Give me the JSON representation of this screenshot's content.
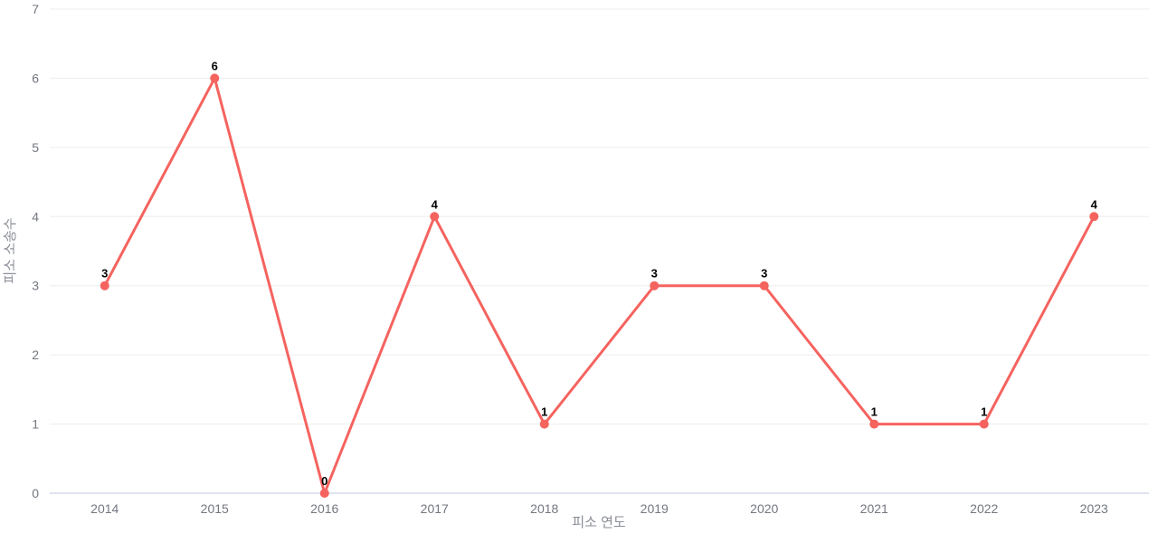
{
  "chart_data": {
    "type": "line",
    "title": "",
    "categories": [
      "2014",
      "2015",
      "2016",
      "2017",
      "2018",
      "2019",
      "2020",
      "2021",
      "2022",
      "2023"
    ],
    "values": [
      3,
      6,
      0,
      4,
      1,
      3,
      3,
      1,
      1,
      4
    ],
    "xlabel": "피소 연도",
    "ylabel": "피소 소송수",
    "ylim": [
      0,
      7
    ],
    "y_ticks": [
      0,
      1,
      2,
      3,
      4,
      5,
      6,
      7
    ],
    "grid": true,
    "legend_position": "none",
    "point_labels_shown": true,
    "colors": {
      "series": "#F5635F",
      "gridline": "#EDEDED",
      "axis_line": "#DFE3EF",
      "tick_label": "#73777F",
      "axis_title": "#8A8E96",
      "value_label": "#000000",
      "background": "#FFFFFF"
    }
  }
}
